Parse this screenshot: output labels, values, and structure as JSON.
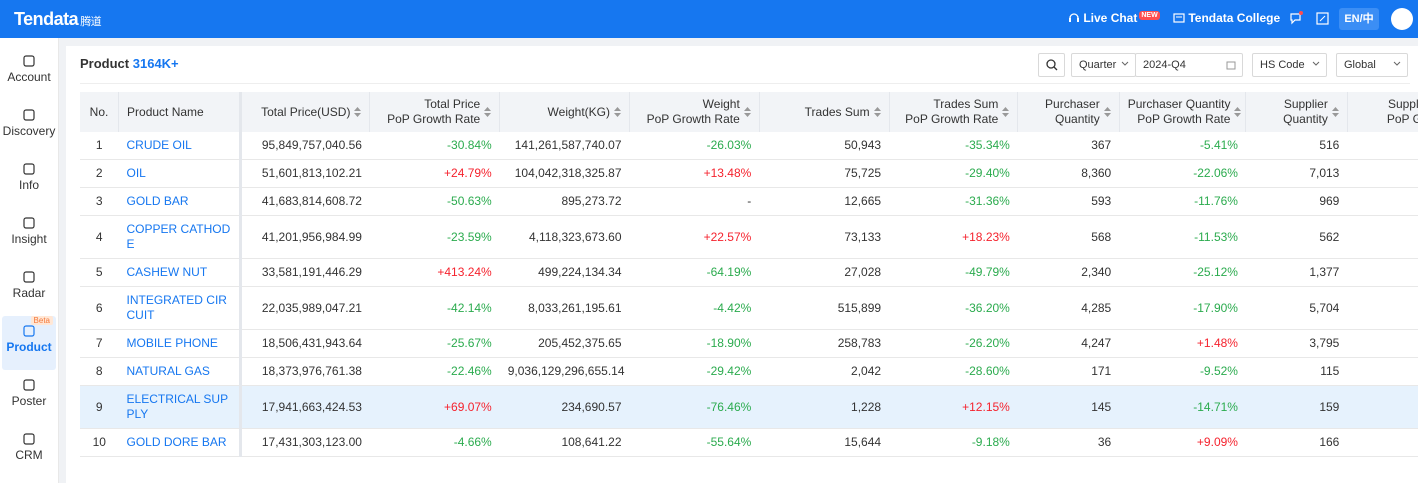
{
  "header": {
    "logo": "Tendata",
    "logo_cn": "腾道",
    "live_chat": "Live Chat",
    "new_badge": "NEW",
    "college": "Tendata College",
    "language": "EN/中"
  },
  "sidebar": {
    "items": [
      {
        "label": "Account"
      },
      {
        "label": "Discovery"
      },
      {
        "label": "Info"
      },
      {
        "label": "Insight"
      },
      {
        "label": "Radar"
      },
      {
        "label": "Product",
        "badge": "Beta"
      },
      {
        "label": "Poster"
      },
      {
        "label": "CRM"
      }
    ]
  },
  "toolbar": {
    "title": "Product",
    "count": "3164K+",
    "period_type": "Quarter",
    "period": "2024-Q4",
    "code_type": "HS Code",
    "region": "Global"
  },
  "table": {
    "columns": [
      {
        "label": "No."
      },
      {
        "label": "Product Name"
      },
      {
        "label": "Total Price(USD)"
      },
      {
        "label": "Total Price",
        "sub": "PoP Growth Rate"
      },
      {
        "label": "Weight(KG)"
      },
      {
        "label": "Weight",
        "sub": "PoP Growth Rate"
      },
      {
        "label": "Trades Sum"
      },
      {
        "label": "Trades Sum",
        "sub": "PoP Growth Rate"
      },
      {
        "label": "Purchaser",
        "sub": "Quantity"
      },
      {
        "label": "Purchaser Quantity",
        "sub": "PoP Growth Rate"
      },
      {
        "label": "Supplier",
        "sub": "Quantity"
      },
      {
        "label": "Supplier Quantity",
        "sub": "PoP Growth Rate"
      }
    ],
    "rows": [
      [
        "1",
        "CRUDE OIL",
        "95,849,757,040.56",
        "-30.84%",
        "141,261,587,740.07",
        "-26.03%",
        "50,943",
        "-35.34%",
        "367",
        "-5.41%",
        "516"
      ],
      [
        "2",
        "OIL",
        "51,601,813,102.21",
        "+24.79%",
        "104,042,318,325.87",
        "+13.48%",
        "75,725",
        "-29.40%",
        "8,360",
        "-22.06%",
        "7,013"
      ],
      [
        "3",
        "GOLD BAR",
        "41,683,814,608.72",
        "-50.63%",
        "895,273.72",
        "-",
        "12,665",
        "-31.36%",
        "593",
        "-11.76%",
        "969"
      ],
      [
        "4",
        "COPPER CATHODE",
        "41,201,956,984.99",
        "-23.59%",
        "4,118,323,673.60",
        "+22.57%",
        "73,133",
        "+18.23%",
        "568",
        "-11.53%",
        "562"
      ],
      [
        "5",
        "CASHEW NUT",
        "33,581,191,446.29",
        "+413.24%",
        "499,224,134.34",
        "-64.19%",
        "27,028",
        "-49.79%",
        "2,340",
        "-25.12%",
        "1,377"
      ],
      [
        "6",
        "INTEGRATED CIRCUIT",
        "22,035,989,047.21",
        "-42.14%",
        "8,033,261,195.61",
        "-4.42%",
        "515,899",
        "-36.20%",
        "4,285",
        "-17.90%",
        "5,704"
      ],
      [
        "7",
        "MOBILE PHONE",
        "18,506,431,943.64",
        "-25.67%",
        "205,452,375.65",
        "-18.90%",
        "258,783",
        "-26.20%",
        "4,247",
        "+1.48%",
        "3,795"
      ],
      [
        "8",
        "NATURAL GAS",
        "18,373,976,761.38",
        "-22.46%",
        "9,036,129,296,655.14",
        "-29.42%",
        "2,042",
        "-28.60%",
        "171",
        "-9.52%",
        "115"
      ],
      [
        "9",
        "ELECTRICAL SUPPLY",
        "17,941,663,424.53",
        "+69.07%",
        "234,690.57",
        "-76.46%",
        "1,228",
        "+12.15%",
        "145",
        "-14.71%",
        "159"
      ],
      [
        "10",
        "GOLD DORE BAR",
        "17,431,303,123.00",
        "-4.66%",
        "108,641.22",
        "-55.64%",
        "15,644",
        "-9.18%",
        "36",
        "+9.09%",
        "166"
      ]
    ]
  }
}
